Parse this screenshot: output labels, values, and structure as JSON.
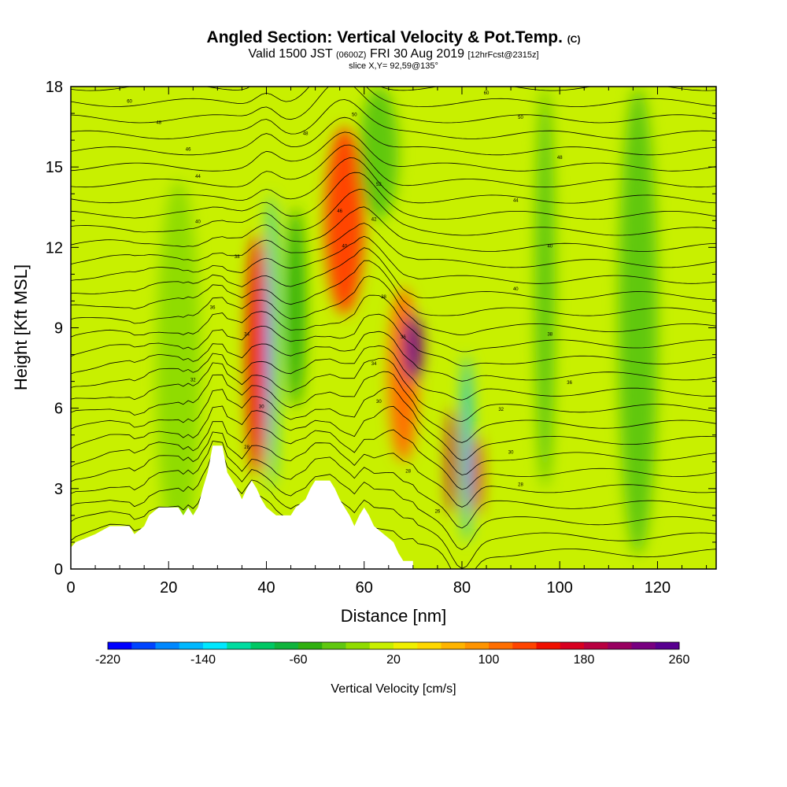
{
  "header": {
    "title_main": "Angled Section: Vertical Velocity & Pot.Temp.",
    "title_unit": "(C)",
    "valid_prefix": "Valid 1500 JST",
    "valid_utc": "(0600Z)",
    "valid_date": "FRI 30 Aug 2019",
    "forecast": "[12hrFcst@2315z]",
    "slice": "slice X,Y= 92,59@135°"
  },
  "chart_data": {
    "type": "heatmap",
    "xlabel": "Distance [nm]",
    "ylabel": "Height [Kft MSL]",
    "xlim": [
      0,
      132
    ],
    "ylim": [
      0,
      18
    ],
    "x_ticks": [
      0,
      20,
      40,
      60,
      80,
      100,
      120
    ],
    "y_ticks": [
      0,
      3,
      6,
      9,
      12,
      15,
      18
    ],
    "colorbar": {
      "label": "Vertical Velocity [cm/s]",
      "min": -220,
      "max": 260,
      "step": 20,
      "tick_labels": [
        -220,
        -140,
        -60,
        20,
        100,
        180,
        260
      ],
      "colors": [
        "#0000ff",
        "#0044ff",
        "#0088ff",
        "#00b8ff",
        "#00e8ff",
        "#00dca0",
        "#00c864",
        "#10b43c",
        "#30b010",
        "#60c810",
        "#90dc00",
        "#c8f000",
        "#f0f000",
        "#ffd800",
        "#ffb400",
        "#ff9400",
        "#ff6e00",
        "#ff4400",
        "#f01000",
        "#d80020",
        "#b80040",
        "#980060",
        "#780080",
        "#580090"
      ]
    },
    "terrain": [
      [
        0,
        0.8
      ],
      [
        1,
        1.0
      ],
      [
        5,
        1.3
      ],
      [
        8,
        1.6
      ],
      [
        12,
        1.6
      ],
      [
        13,
        1.3
      ],
      [
        15,
        1.6
      ],
      [
        16,
        2.0
      ],
      [
        18,
        2.3
      ],
      [
        22,
        2.3
      ],
      [
        23,
        2.0
      ],
      [
        24,
        2.3
      ],
      [
        25,
        2.0
      ],
      [
        26,
        2.3
      ],
      [
        27,
        3.0
      ],
      [
        28,
        3.6
      ],
      [
        29,
        4.6
      ],
      [
        31,
        4.6
      ],
      [
        32,
        3.6
      ],
      [
        34,
        3.0
      ],
      [
        35,
        2.6
      ],
      [
        36,
        3.0
      ],
      [
        37,
        3.3
      ],
      [
        38,
        3.0
      ],
      [
        39,
        2.6
      ],
      [
        40,
        2.3
      ],
      [
        42,
        2.0
      ],
      [
        45,
        2.0
      ],
      [
        46,
        2.3
      ],
      [
        48,
        2.6
      ],
      [
        49,
        3.0
      ],
      [
        50,
        3.3
      ],
      [
        53,
        3.3
      ],
      [
        54,
        3.0
      ],
      [
        55,
        2.6
      ],
      [
        56,
        2.3
      ],
      [
        57,
        2.0
      ],
      [
        58,
        1.6
      ],
      [
        59,
        2.0
      ],
      [
        60,
        2.3
      ],
      [
        61,
        2.0
      ],
      [
        62,
        1.6
      ],
      [
        64,
        1.3
      ],
      [
        66,
        1.0
      ],
      [
        67,
        0.6
      ],
      [
        68,
        0.3
      ],
      [
        70,
        0.3
      ]
    ],
    "features": [
      {
        "x": 22,
        "width": 9,
        "y0": 0.5,
        "y1": 14.5,
        "value": -20
      },
      {
        "x": 38,
        "width": 4,
        "y0": 3.5,
        "y1": 12.5,
        "value": 140
      },
      {
        "x": 41,
        "width": 2,
        "y0": 3.0,
        "y1": 14.0,
        "value": -160
      },
      {
        "x": 46,
        "width": 4,
        "y0": 6.0,
        "y1": 13.5,
        "value": -50
      },
      {
        "x": 56,
        "width": 8,
        "y0": 9.5,
        "y1": 16.5,
        "value": 130
      },
      {
        "x": 63,
        "width": 8,
        "y0": 13.0,
        "y1": 18.0,
        "value": -40
      },
      {
        "x": 68,
        "width": 6,
        "y0": 4.0,
        "y1": 10.5,
        "value": 110
      },
      {
        "x": 70,
        "width": 4,
        "y0": 7.0,
        "y1": 9.5,
        "value": 220
      },
      {
        "x": 78,
        "width": 2,
        "y0": 2.0,
        "y1": 6.0,
        "value": 190
      },
      {
        "x": 81,
        "width": 2,
        "y0": 1.0,
        "y1": 8.0,
        "value": -150
      },
      {
        "x": 83,
        "width": 2,
        "y0": 2.0,
        "y1": 5.0,
        "value": 170
      },
      {
        "x": 97,
        "width": 4,
        "y0": 3.0,
        "y1": 18.0,
        "value": -30
      },
      {
        "x": 116,
        "width": 8,
        "y0": 0.5,
        "y1": 18.0,
        "value": -30
      }
    ],
    "isentrope_labels": [
      {
        "x": 12,
        "y": 17.4,
        "text": "60"
      },
      {
        "x": 18,
        "y": 16.6,
        "text": "48"
      },
      {
        "x": 24,
        "y": 15.6,
        "text": "46"
      },
      {
        "x": 26,
        "y": 14.6,
        "text": "44"
      },
      {
        "x": 26,
        "y": 12.9,
        "text": "40"
      },
      {
        "x": 34,
        "y": 11.6,
        "text": "38"
      },
      {
        "x": 29,
        "y": 9.7,
        "text": "36"
      },
      {
        "x": 36,
        "y": 8.7,
        "text": "34"
      },
      {
        "x": 25,
        "y": 7.0,
        "text": "32"
      },
      {
        "x": 39,
        "y": 6.0,
        "text": "30"
      },
      {
        "x": 36,
        "y": 4.5,
        "text": "28"
      },
      {
        "x": 48,
        "y": 16.2,
        "text": "48"
      },
      {
        "x": 58,
        "y": 16.9,
        "text": "50"
      },
      {
        "x": 63,
        "y": 14.3,
        "text": "52"
      },
      {
        "x": 55,
        "y": 13.3,
        "text": "46"
      },
      {
        "x": 62,
        "y": 13.0,
        "text": "42"
      },
      {
        "x": 56,
        "y": 12.0,
        "text": "40"
      },
      {
        "x": 64,
        "y": 10.1,
        "text": "38"
      },
      {
        "x": 68,
        "y": 8.6,
        "text": "36"
      },
      {
        "x": 62,
        "y": 7.6,
        "text": "34"
      },
      {
        "x": 63,
        "y": 6.2,
        "text": "30"
      },
      {
        "x": 69,
        "y": 3.6,
        "text": "28"
      },
      {
        "x": 75,
        "y": 2.1,
        "text": "26"
      },
      {
        "x": 85,
        "y": 17.7,
        "text": "60"
      },
      {
        "x": 92,
        "y": 16.8,
        "text": "50"
      },
      {
        "x": 100,
        "y": 15.3,
        "text": "48"
      },
      {
        "x": 91,
        "y": 13.7,
        "text": "44"
      },
      {
        "x": 98,
        "y": 12.0,
        "text": "40"
      },
      {
        "x": 91,
        "y": 10.4,
        "text": "40"
      },
      {
        "x": 98,
        "y": 8.7,
        "text": "38"
      },
      {
        "x": 102,
        "y": 6.9,
        "text": "36"
      },
      {
        "x": 88,
        "y": 5.9,
        "text": "32"
      },
      {
        "x": 90,
        "y": 4.3,
        "text": "30"
      },
      {
        "x": 92,
        "y": 3.1,
        "text": "28"
      }
    ]
  }
}
